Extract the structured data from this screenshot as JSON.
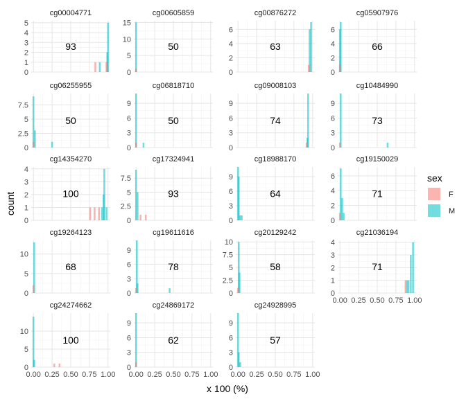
{
  "chart_data": {
    "type": "histogram-facets",
    "xlabel": "x 100 (%)",
    "ylabel": "count",
    "x_ticks": [
      "0.00",
      "0.25",
      "0.50",
      "0.75",
      "1.00"
    ],
    "xlim": [
      -0.03,
      1.03
    ],
    "grid": true,
    "legend": {
      "title": "sex",
      "position": "right",
      "entries": [
        {
          "key": "F",
          "label": "F",
          "color": "#F8766D"
        },
        {
          "key": "M",
          "label": "M",
          "color": "#00BFC4"
        }
      ]
    },
    "facets": [
      {
        "title": "cg00004771",
        "label": "93",
        "ylim": [
          0,
          5.2
        ],
        "y_ticks": [
          0,
          1,
          2,
          3,
          4,
          5
        ],
        "bars": [
          {
            "x": 0.83,
            "sex": "F",
            "count": 1
          },
          {
            "x": 0.89,
            "sex": "M",
            "count": 1
          },
          {
            "x": 0.98,
            "sex": "F",
            "count": 1
          },
          {
            "x": 0.99,
            "sex": "M",
            "count": 2
          },
          {
            "x": 1.0,
            "sex": "M",
            "count": 5
          }
        ]
      },
      {
        "title": "cg00605859",
        "label": "50",
        "ylim": [
          0,
          15.5
        ],
        "y_ticks": [
          0,
          5,
          10,
          15
        ],
        "bars": [
          {
            "x": 0.0,
            "sex": "F",
            "count": 1
          },
          {
            "x": 0.0,
            "sex": "M",
            "count": 15
          }
        ]
      },
      {
        "title": "cg00876272",
        "label": "63",
        "ylim": [
          0,
          7.2
        ],
        "y_ticks": [
          0,
          2,
          4,
          6
        ],
        "bars": [
          {
            "x": 0.95,
            "sex": "F",
            "count": 1
          },
          {
            "x": 0.96,
            "sex": "M",
            "count": 6
          },
          {
            "x": 0.98,
            "sex": "M",
            "count": 7
          }
        ]
      },
      {
        "title": "cg05907976",
        "label": "66",
        "ylim": [
          0,
          7.2
        ],
        "y_ticks": [
          0,
          2,
          4,
          6
        ],
        "bars": [
          {
            "x": 0.0,
            "sex": "F",
            "count": 1
          },
          {
            "x": 0.0,
            "sex": "M",
            "count": 6
          },
          {
            "x": 0.01,
            "sex": "M",
            "count": 7
          }
        ]
      },
      {
        "title": "cg06255955",
        "label": "50",
        "ylim": [
          0,
          9.5
        ],
        "y_ticks": [
          0,
          2.5,
          5,
          7.5
        ],
        "bars": [
          {
            "x": 0.0,
            "sex": "F",
            "count": 1
          },
          {
            "x": 0.0,
            "sex": "M",
            "count": 9
          },
          {
            "x": 0.02,
            "sex": "M",
            "count": 3
          },
          {
            "x": 0.25,
            "sex": "M",
            "count": 1
          }
        ]
      },
      {
        "title": "cg06818710",
        "label": "50",
        "ylim": [
          0,
          11.0
        ],
        "y_ticks": [
          0,
          3,
          6,
          9
        ],
        "bars": [
          {
            "x": 0.0,
            "sex": "F",
            "count": 1
          },
          {
            "x": 0.0,
            "sex": "M",
            "count": 11
          },
          {
            "x": 0.1,
            "sex": "M",
            "count": 1
          }
        ]
      },
      {
        "title": "cg09008103",
        "label": "74",
        "ylim": [
          0,
          11.0
        ],
        "y_ticks": [
          0,
          3,
          6,
          9
        ],
        "bars": [
          {
            "x": 0.92,
            "sex": "F",
            "count": 1
          },
          {
            "x": 0.93,
            "sex": "M",
            "count": 2
          },
          {
            "x": 0.94,
            "sex": "M",
            "count": 11
          }
        ]
      },
      {
        "title": "cg10484990",
        "label": "73",
        "ylim": [
          0,
          11.0
        ],
        "y_ticks": [
          0,
          3,
          6,
          9
        ],
        "bars": [
          {
            "x": 0.0,
            "sex": "F",
            "count": 1
          },
          {
            "x": 0.01,
            "sex": "M",
            "count": 11
          },
          {
            "x": 0.64,
            "sex": "M",
            "count": 1
          }
        ]
      },
      {
        "title": "cg14354270",
        "label": "100",
        "ylim": [
          0,
          4.15
        ],
        "y_ticks": [
          0,
          1,
          2,
          3,
          4
        ],
        "bars": [
          {
            "x": 0.76,
            "sex": "F",
            "count": 1
          },
          {
            "x": 0.82,
            "sex": "F",
            "count": 1
          },
          {
            "x": 0.88,
            "sex": "F",
            "count": 1
          },
          {
            "x": 0.92,
            "sex": "M",
            "count": 1
          },
          {
            "x": 0.94,
            "sex": "M",
            "count": 2
          },
          {
            "x": 0.95,
            "sex": "M",
            "count": 4
          },
          {
            "x": 0.98,
            "sex": "M",
            "count": 1
          }
        ]
      },
      {
        "title": "cg17324941",
        "label": "93",
        "ylim": [
          0,
          9.5
        ],
        "y_ticks": [
          0,
          2.5,
          5,
          7.5
        ],
        "bars": [
          {
            "x": 0.0,
            "sex": "M",
            "count": 9
          },
          {
            "x": 0.02,
            "sex": "M",
            "count": 5
          },
          {
            "x": 0.06,
            "sex": "F",
            "count": 1
          },
          {
            "x": 0.13,
            "sex": "F",
            "count": 1
          }
        ]
      },
      {
        "title": "cg18988170",
        "label": "64",
        "ylim": [
          0,
          11.0
        ],
        "y_ticks": [
          0,
          3,
          6,
          9
        ],
        "bars": [
          {
            "x": 0.0,
            "sex": "M",
            "count": 11
          },
          {
            "x": 0.01,
            "sex": "M",
            "count": 9
          },
          {
            "x": 0.03,
            "sex": "M",
            "count": 1
          },
          {
            "x": 0.05,
            "sex": "M",
            "count": 1
          }
        ]
      },
      {
        "title": "cg19150029",
        "label": "71",
        "ylim": [
          0,
          7.2
        ],
        "y_ticks": [
          0,
          2,
          4,
          6
        ],
        "bars": [
          {
            "x": 0.0,
            "sex": "F",
            "count": 1
          },
          {
            "x": 0.01,
            "sex": "M",
            "count": 7
          },
          {
            "x": 0.03,
            "sex": "M",
            "count": 3
          },
          {
            "x": 0.05,
            "sex": "M",
            "count": 1
          }
        ]
      },
      {
        "title": "cg19264123",
        "label": "68",
        "ylim": [
          0,
          13.5
        ],
        "y_ticks": [
          0,
          5,
          10
        ],
        "bars": [
          {
            "x": 0.0,
            "sex": "F",
            "count": 2
          },
          {
            "x": 0.01,
            "sex": "M",
            "count": 13
          }
        ]
      },
      {
        "title": "cg19611616",
        "label": "78",
        "ylim": [
          0,
          11.0
        ],
        "y_ticks": [
          0,
          3,
          6,
          9
        ],
        "bars": [
          {
            "x": 0.0,
            "sex": "F",
            "count": 1
          },
          {
            "x": 0.01,
            "sex": "M",
            "count": 11
          },
          {
            "x": 0.02,
            "sex": "M",
            "count": 2
          },
          {
            "x": 0.45,
            "sex": "M",
            "count": 1
          }
        ]
      },
      {
        "title": "cg20129242",
        "label": "58",
        "ylim": [
          0,
          10.3
        ],
        "y_ticks": [
          0,
          2.5,
          5,
          7.5,
          10
        ],
        "bars": [
          {
            "x": 0.0,
            "sex": "F",
            "count": 1
          },
          {
            "x": 0.01,
            "sex": "M",
            "count": 10
          },
          {
            "x": 0.02,
            "sex": "M",
            "count": 4
          }
        ]
      },
      {
        "title": "cg21036194",
        "label": "71",
        "ylim": [
          0,
          4.15
        ],
        "y_ticks": [
          0,
          1,
          2,
          3,
          4
        ],
        "bars": [
          {
            "x": 0.88,
            "sex": "F",
            "count": 1
          },
          {
            "x": 0.9,
            "sex": "M",
            "count": 1
          },
          {
            "x": 0.92,
            "sex": "M",
            "count": 1
          },
          {
            "x": 0.95,
            "sex": "M",
            "count": 3
          },
          {
            "x": 0.98,
            "sex": "M",
            "count": 4
          }
        ]
      },
      {
        "title": "cg24274662",
        "label": "100",
        "ylim": [
          0,
          15.0
        ],
        "y_ticks": [
          0,
          5,
          10
        ],
        "bars": [
          {
            "x": 0.0,
            "sex": "M",
            "count": 14
          },
          {
            "x": 0.01,
            "sex": "M",
            "count": 2
          },
          {
            "x": 0.28,
            "sex": "F",
            "count": 1
          },
          {
            "x": 0.35,
            "sex": "F",
            "count": 1
          }
        ]
      },
      {
        "title": "cg24869172",
        "label": "62",
        "ylim": [
          0,
          11.0
        ],
        "y_ticks": [
          0,
          3,
          6,
          9
        ],
        "bars": [
          {
            "x": 0.0,
            "sex": "F",
            "count": 1
          },
          {
            "x": 0.0,
            "sex": "M",
            "count": 11
          }
        ]
      },
      {
        "title": "cg24928995",
        "label": "57",
        "ylim": [
          0,
          11.0
        ],
        "y_ticks": [
          0,
          3,
          6,
          9
        ],
        "bars": [
          {
            "x": 0.0,
            "sex": "M",
            "count": 11
          },
          {
            "x": 0.01,
            "sex": "M",
            "count": 3
          },
          {
            "x": 0.03,
            "sex": "M",
            "count": 1
          }
        ]
      }
    ]
  }
}
